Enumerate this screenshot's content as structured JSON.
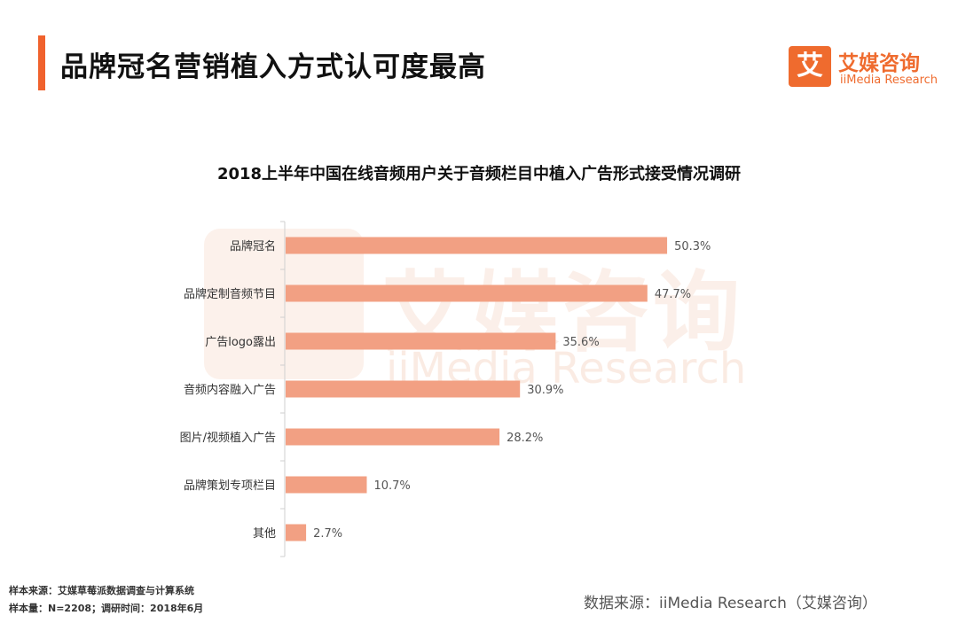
{
  "header": {
    "title": "品牌冠名营销植入方式认可度最高",
    "accent_color": "#f0622d"
  },
  "logo": {
    "icon_char": "艾",
    "name_cn": "艾媒咨询",
    "name_en": "iiMedia Research",
    "brand_color": "#ef6b2e"
  },
  "watermark": {
    "text_cn": "艾媒咨询",
    "text_en": "iiMedia Research"
  },
  "chart_data": {
    "type": "bar",
    "orientation": "horizontal",
    "title": "2018上半年中国在线音频用户关于音频栏目中植入广告形式接受情况调研",
    "categories": [
      "品牌冠名",
      "品牌定制音频节目",
      "广告logo露出",
      "音频内容融入广告",
      "图片/视频植入广告",
      "品牌策划专项栏目",
      "其他"
    ],
    "values": [
      50.3,
      47.7,
      35.6,
      30.9,
      28.2,
      10.7,
      2.7
    ],
    "value_labels": [
      "50.3%",
      "47.7%",
      "35.6%",
      "30.9%",
      "28.2%",
      "10.7%",
      "2.7%"
    ],
    "unit": "%",
    "xlim": [
      0,
      60
    ],
    "bar_color": "#f2a083",
    "xlabel": "",
    "ylabel": ""
  },
  "footer": {
    "sample_source": "样本来源：艾媒草莓派数据调查与计算系统",
    "sample_info": "样本量：N=2208；调研时间：2018年6月",
    "data_source": "数据来源：iiMedia Research（艾媒咨询）"
  }
}
